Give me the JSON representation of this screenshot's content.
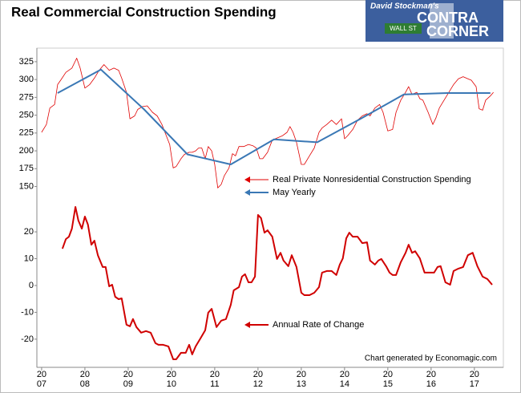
{
  "logo": {
    "byline": "David Stockman's",
    "top": "CONTRA",
    "sign": "WALL ST",
    "bottom": "CORNER"
  },
  "chart_data": [
    {
      "type": "line",
      "title": "Real Commercial Construction Spending",
      "xlim": [
        2006.89,
        2017.67
      ],
      "ylim": [
        136,
        344
      ],
      "yticks": [
        150,
        175,
        200,
        225,
        250,
        275,
        300,
        325
      ],
      "series": [
        {
          "name": "Real Private Nonresidential Construction Spending",
          "color": "#e00000",
          "x": [
            2007.0,
            2007.11,
            2007.19,
            2007.3,
            2007.37,
            2007.44,
            2007.56,
            2007.7,
            2007.81,
            2007.89,
            2008.0,
            2008.11,
            2008.22,
            2008.33,
            2008.44,
            2008.56,
            2008.67,
            2008.78,
            2008.85,
            2008.96,
            2009.04,
            2009.15,
            2009.22,
            2009.33,
            2009.44,
            2009.56,
            2009.67,
            2009.78,
            2009.85,
            2009.96,
            2010.04,
            2010.11,
            2010.22,
            2010.3,
            2010.41,
            2010.48,
            2010.56,
            2010.63,
            2010.7,
            2010.78,
            2010.85,
            2010.93,
            2011.0,
            2011.07,
            2011.15,
            2011.22,
            2011.33,
            2011.41,
            2011.48,
            2011.56,
            2011.67,
            2011.78,
            2011.89,
            2011.96,
            2012.04,
            2012.11,
            2012.22,
            2012.33,
            2012.44,
            2012.56,
            2012.67,
            2012.74,
            2012.81,
            2012.89,
            2013.0,
            2013.07,
            2013.19,
            2013.3,
            2013.41,
            2013.48,
            2013.59,
            2013.7,
            2013.81,
            2013.93,
            2014.0,
            2014.07,
            2014.19,
            2014.3,
            2014.41,
            2014.52,
            2014.59,
            2014.7,
            2014.81,
            2014.89,
            2015.0,
            2015.11,
            2015.19,
            2015.3,
            2015.41,
            2015.48,
            2015.56,
            2015.67,
            2015.74,
            2015.81,
            2015.93,
            2016.04,
            2016.11,
            2016.19,
            2016.3,
            2016.41,
            2016.52,
            2016.63,
            2016.74,
            2016.85,
            2016.93,
            2017.04,
            2017.11,
            2017.19,
            2017.26,
            2017.37,
            2017.44
          ],
          "values": [
            226,
            237,
            260,
            265,
            293,
            299,
            310,
            316,
            330,
            316,
            288,
            293,
            302,
            313,
            321,
            313,
            316,
            313,
            302,
            282,
            245,
            249,
            258,
            262,
            263,
            254,
            249,
            237,
            226,
            209,
            176,
            178,
            189,
            195,
            198,
            198,
            200,
            204,
            204,
            189,
            206,
            200,
            181,
            148,
            153,
            165,
            176,
            196,
            193,
            206,
            206,
            209,
            207,
            204,
            189,
            189,
            198,
            215,
            218,
            221,
            226,
            234,
            226,
            212,
            181,
            181,
            193,
            204,
            226,
            232,
            237,
            243,
            237,
            245,
            217,
            221,
            230,
            243,
            249,
            252,
            249,
            260,
            265,
            254,
            228,
            230,
            254,
            271,
            282,
            290,
            279,
            282,
            273,
            271,
            254,
            237,
            246,
            260,
            271,
            282,
            293,
            301,
            304,
            301,
            299,
            290,
            259,
            257,
            271,
            277,
            282
          ]
        },
        {
          "name": "May Yearly",
          "color": "#3a78b5",
          "x": [
            2007.37,
            2008.37,
            2009.37,
            2010.37,
            2011.37,
            2012.37,
            2013.37,
            2014.37,
            2015.37,
            2016.37,
            2017.37
          ],
          "values": [
            281,
            314,
            258,
            195,
            181,
            216,
            212,
            245,
            279,
            281,
            281
          ]
        }
      ]
    },
    {
      "type": "line",
      "note": "Chart generated by Economagic.com",
      "xlim": [
        2006.89,
        2017.67
      ],
      "ylim": [
        -30.5,
        25.7
      ],
      "yticks": [
        -20,
        -10,
        0,
        10,
        20
      ],
      "xticks": [
        {
          "value": 2007,
          "label": [
            "20",
            "07"
          ]
        },
        {
          "value": 2008,
          "label": [
            "20",
            "08"
          ]
        },
        {
          "value": 2009,
          "label": [
            "20",
            "09"
          ]
        },
        {
          "value": 2010,
          "label": [
            "20",
            "10"
          ]
        },
        {
          "value": 2011,
          "label": [
            "20",
            "11"
          ]
        },
        {
          "value": 2012,
          "label": [
            "20",
            "12"
          ]
        },
        {
          "value": 2013,
          "label": [
            "20",
            "13"
          ]
        },
        {
          "value": 2014,
          "label": [
            "20",
            "14"
          ]
        },
        {
          "value": 2015,
          "label": [
            "20",
            "15"
          ]
        },
        {
          "value": 2016,
          "label": [
            "20",
            "16"
          ]
        },
        {
          "value": 2017,
          "label": [
            "20",
            "17"
          ]
        }
      ],
      "series": [
        {
          "name": "Annual Rate of Change",
          "color": "#d00000",
          "x": [
            2007.48,
            2007.56,
            2007.63,
            2007.7,
            2007.78,
            2007.85,
            2007.93,
            2008.0,
            2008.07,
            2008.15,
            2008.22,
            2008.3,
            2008.41,
            2008.48,
            2008.56,
            2008.63,
            2008.7,
            2008.78,
            2008.85,
            2008.96,
            2009.04,
            2009.11,
            2009.19,
            2009.3,
            2009.41,
            2009.52,
            2009.63,
            2009.7,
            2009.81,
            2009.93,
            2010.04,
            2010.11,
            2010.22,
            2010.33,
            2010.41,
            2010.48,
            2010.56,
            2010.67,
            2010.78,
            2010.85,
            2010.93,
            2011.04,
            2011.15,
            2011.26,
            2011.37,
            2011.44,
            2011.56,
            2011.63,
            2011.7,
            2011.78,
            2011.85,
            2011.93,
            2012.0,
            2012.07,
            2012.15,
            2012.22,
            2012.33,
            2012.44,
            2012.52,
            2012.59,
            2012.7,
            2012.78,
            2012.89,
            2013.0,
            2013.07,
            2013.19,
            2013.3,
            2013.41,
            2013.48,
            2013.59,
            2013.7,
            2013.81,
            2013.89,
            2013.96,
            2014.04,
            2014.11,
            2014.19,
            2014.3,
            2014.41,
            2014.52,
            2014.59,
            2014.7,
            2014.78,
            2014.85,
            2014.96,
            2015.04,
            2015.11,
            2015.19,
            2015.3,
            2015.41,
            2015.48,
            2015.56,
            2015.63,
            2015.74,
            2015.85,
            2015.96,
            2016.07,
            2016.15,
            2016.22,
            2016.33,
            2016.44,
            2016.52,
            2016.63,
            2016.74,
            2016.85,
            2016.96,
            2017.07,
            2017.19,
            2017.3,
            2017.41
          ],
          "values": [
            13.7,
            17.3,
            18.2,
            21.2,
            29.3,
            24.2,
            21.2,
            25.7,
            22.7,
            15.2,
            16.7,
            11.3,
            6.9,
            6.9,
            -0.3,
            0.3,
            -4.2,
            -5.1,
            -4.8,
            -14.6,
            -15.2,
            -12.5,
            -15.5,
            -17.6,
            -17.0,
            -17.6,
            -21.5,
            -22.1,
            -22.1,
            -22.7,
            -27.5,
            -27.5,
            -25.1,
            -25.1,
            -22.1,
            -25.7,
            -22.7,
            -19.7,
            -16.7,
            -10.1,
            -8.7,
            -15.5,
            -13.1,
            -12.5,
            -7.2,
            -1.8,
            -0.6,
            3.3,
            4.2,
            1.2,
            1.2,
            3.3,
            26.3,
            25.1,
            19.7,
            20.6,
            18.2,
            9.9,
            12.2,
            9.3,
            7.2,
            11.3,
            6.9,
            -2.7,
            -3.6,
            -3.6,
            -2.7,
            -0.6,
            4.8,
            5.4,
            5.4,
            3.9,
            7.8,
            10.1,
            17.6,
            19.7,
            18.2,
            18.2,
            15.8,
            16.1,
            9.3,
            7.8,
            9.3,
            9.9,
            7.2,
            4.8,
            3.9,
            3.9,
            8.7,
            12.2,
            15.2,
            12.2,
            12.8,
            10.1,
            4.8,
            4.8,
            4.8,
            6.9,
            7.2,
            1.2,
            0.3,
            5.4,
            6.3,
            6.9,
            11.3,
            12.2,
            7.2,
            3.3,
            2.4,
            0.3
          ]
        }
      ]
    }
  ]
}
